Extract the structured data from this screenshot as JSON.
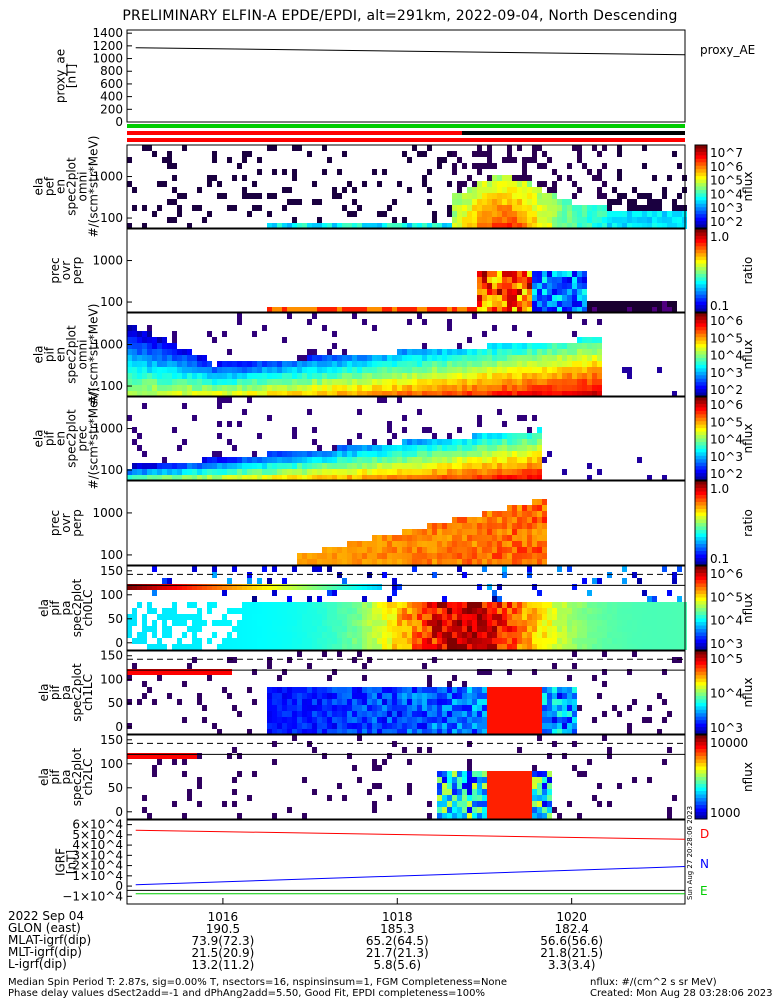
{
  "title": "PRELIMINARY ELFIN-A EPDE/EPDI, alt=291km, 2022-09-04, North Descending",
  "colors": {
    "red": "#ff0000",
    "green": "#00cc00",
    "blue": "#0000ff",
    "black": "#000000"
  },
  "chart_data": [
    {
      "panel": "proxy_ae",
      "type": "line",
      "ylabel": "proxy_ae [nT]",
      "legend": "proxy_AE",
      "yticks": [
        "1400",
        "1200",
        "1000",
        "800",
        "600",
        "400",
        "200",
        "0"
      ],
      "ylim": [
        0,
        1450
      ],
      "x": [
        1015.0,
        1021.3
      ],
      "values": [
        1170,
        1060
      ]
    },
    {
      "panel": "elx_pef_en_spec2plot_omni",
      "type": "heatmap",
      "ylabel": "ela pef en spec2plot omni #/(scm*str*MeV)",
      "yticks": [
        "1000",
        "100"
      ],
      "zticks": [
        "10^7",
        "10^6",
        "10^5",
        "10^4",
        "10^3",
        "10^2"
      ],
      "zlabel": "nflux"
    },
    {
      "panel": "pef_prec_ovr_perp",
      "type": "heatmap",
      "ylabel": "prec ovr perp",
      "yticks": [
        "1000",
        "100"
      ],
      "zticks": [
        "1.0",
        "0.1"
      ],
      "zlabel": "ratio"
    },
    {
      "panel": "elx_pif_en_spec2plot_omni",
      "type": "heatmap",
      "ylabel": "ela pif en spec2plot omni #/(scm*str*MeV)",
      "yticks": [
        "1000",
        "100"
      ],
      "zticks": [
        "10^6",
        "10^5",
        "10^4",
        "10^3",
        "10^2"
      ],
      "zlabel": "nflux"
    },
    {
      "panel": "elx_pif_en_spec2plot_prec",
      "type": "heatmap",
      "ylabel": "ela pif en spec2plot prec #/(scm*str*MeV)",
      "yticks": [
        "1000",
        "100"
      ],
      "zticks": [
        "10^6",
        "10^5",
        "10^4",
        "10^3",
        "10^2"
      ],
      "zlabel": "nflux"
    },
    {
      "panel": "pif_prec_ovr_perp",
      "type": "heatmap",
      "ylabel": "prec ovr perp",
      "yticks": [
        "1000",
        "100"
      ],
      "zticks": [
        "1.0",
        "0.1"
      ],
      "zlabel": "ratio"
    },
    {
      "panel": "pa_ch0LC",
      "type": "heatmap",
      "ylabel": "ela pif pa spec2plot ch0LC",
      "yticks": [
        "150",
        "100",
        "50",
        "0"
      ],
      "zticks": [
        "10^6",
        "10^5",
        "10^4",
        "10^3"
      ],
      "zlabel": "nflux"
    },
    {
      "panel": "pa_ch1LC",
      "type": "heatmap",
      "ylabel": "ela pif pa spec2plot ch1LC",
      "yticks": [
        "150",
        "100",
        "50",
        "0"
      ],
      "zticks": [
        "10^5",
        "10^4",
        "10^3"
      ],
      "zlabel": "nflux"
    },
    {
      "panel": "pa_ch2LC",
      "type": "heatmap",
      "ylabel": "ela pif pa spec2plot ch2LC",
      "yticks": [
        "150",
        "100",
        "50",
        "0"
      ],
      "zticks": [
        "10000",
        "1000"
      ],
      "zlabel": "nflux"
    },
    {
      "panel": "IGRF",
      "type": "line",
      "ylabel": "IGRF [nT]",
      "yticks": [
        "6×10^4",
        "5×10^4",
        "4×10^4",
        "3×10^4",
        "2×10^4",
        "1×10^4",
        "0",
        "−1×10^4"
      ],
      "ylim": [
        -12000,
        62000
      ],
      "series": [
        {
          "name": "D",
          "color": "#ff0000",
          "values": [
            53000,
            45000
          ]
        },
        {
          "name": "N",
          "color": "#0000ff",
          "values": [
            5000,
            21000
          ]
        },
        {
          "name": "E",
          "color": "#00cc00",
          "values": [
            -3000,
            -3000
          ]
        }
      ],
      "x": [
        1015.0,
        1021.3
      ]
    }
  ],
  "xaxis": {
    "date": "2022 Sep 04",
    "ticks": [
      "1016",
      "1018",
      "1020"
    ],
    "tick_x": [
      1016,
      1018,
      1020
    ],
    "xlim": [
      1014.9,
      1021.3
    ]
  },
  "ephemeris": {
    "labels": [
      "GLON (east)",
      "MLAT-igrf(dip)",
      "MLT-igrf(dip)",
      "L-igrf(dip)"
    ],
    "rows": [
      [
        "190.5",
        "185.3",
        "182.4"
      ],
      [
        "73.9(72.3)",
        "65.2(64.5)",
        "56.6(56.6)"
      ],
      [
        "21.5(20.9)",
        "21.7(21.3)",
        "21.8(21.5)"
      ],
      [
        "13.2(11.2)",
        "5.8(5.6)",
        "3.3(3.4)"
      ]
    ]
  },
  "footer": {
    "line1": "Median Spin Period T: 2.87s, sig=0.00% T, nsectors=16, nspinsinsum=1, FGM Completeness=None",
    "line2": "Phase delay values dSect2add=-1 and dPhAng2add=5.50, Good Fit, EPDI completeness=100%",
    "right1": "nflux: #/(cm^2 s sr MeV)",
    "right2": "Created: Mon Aug 28 03:28:06 2023"
  },
  "side_stamp": "Sun Aug 27 20:28:06 2023"
}
